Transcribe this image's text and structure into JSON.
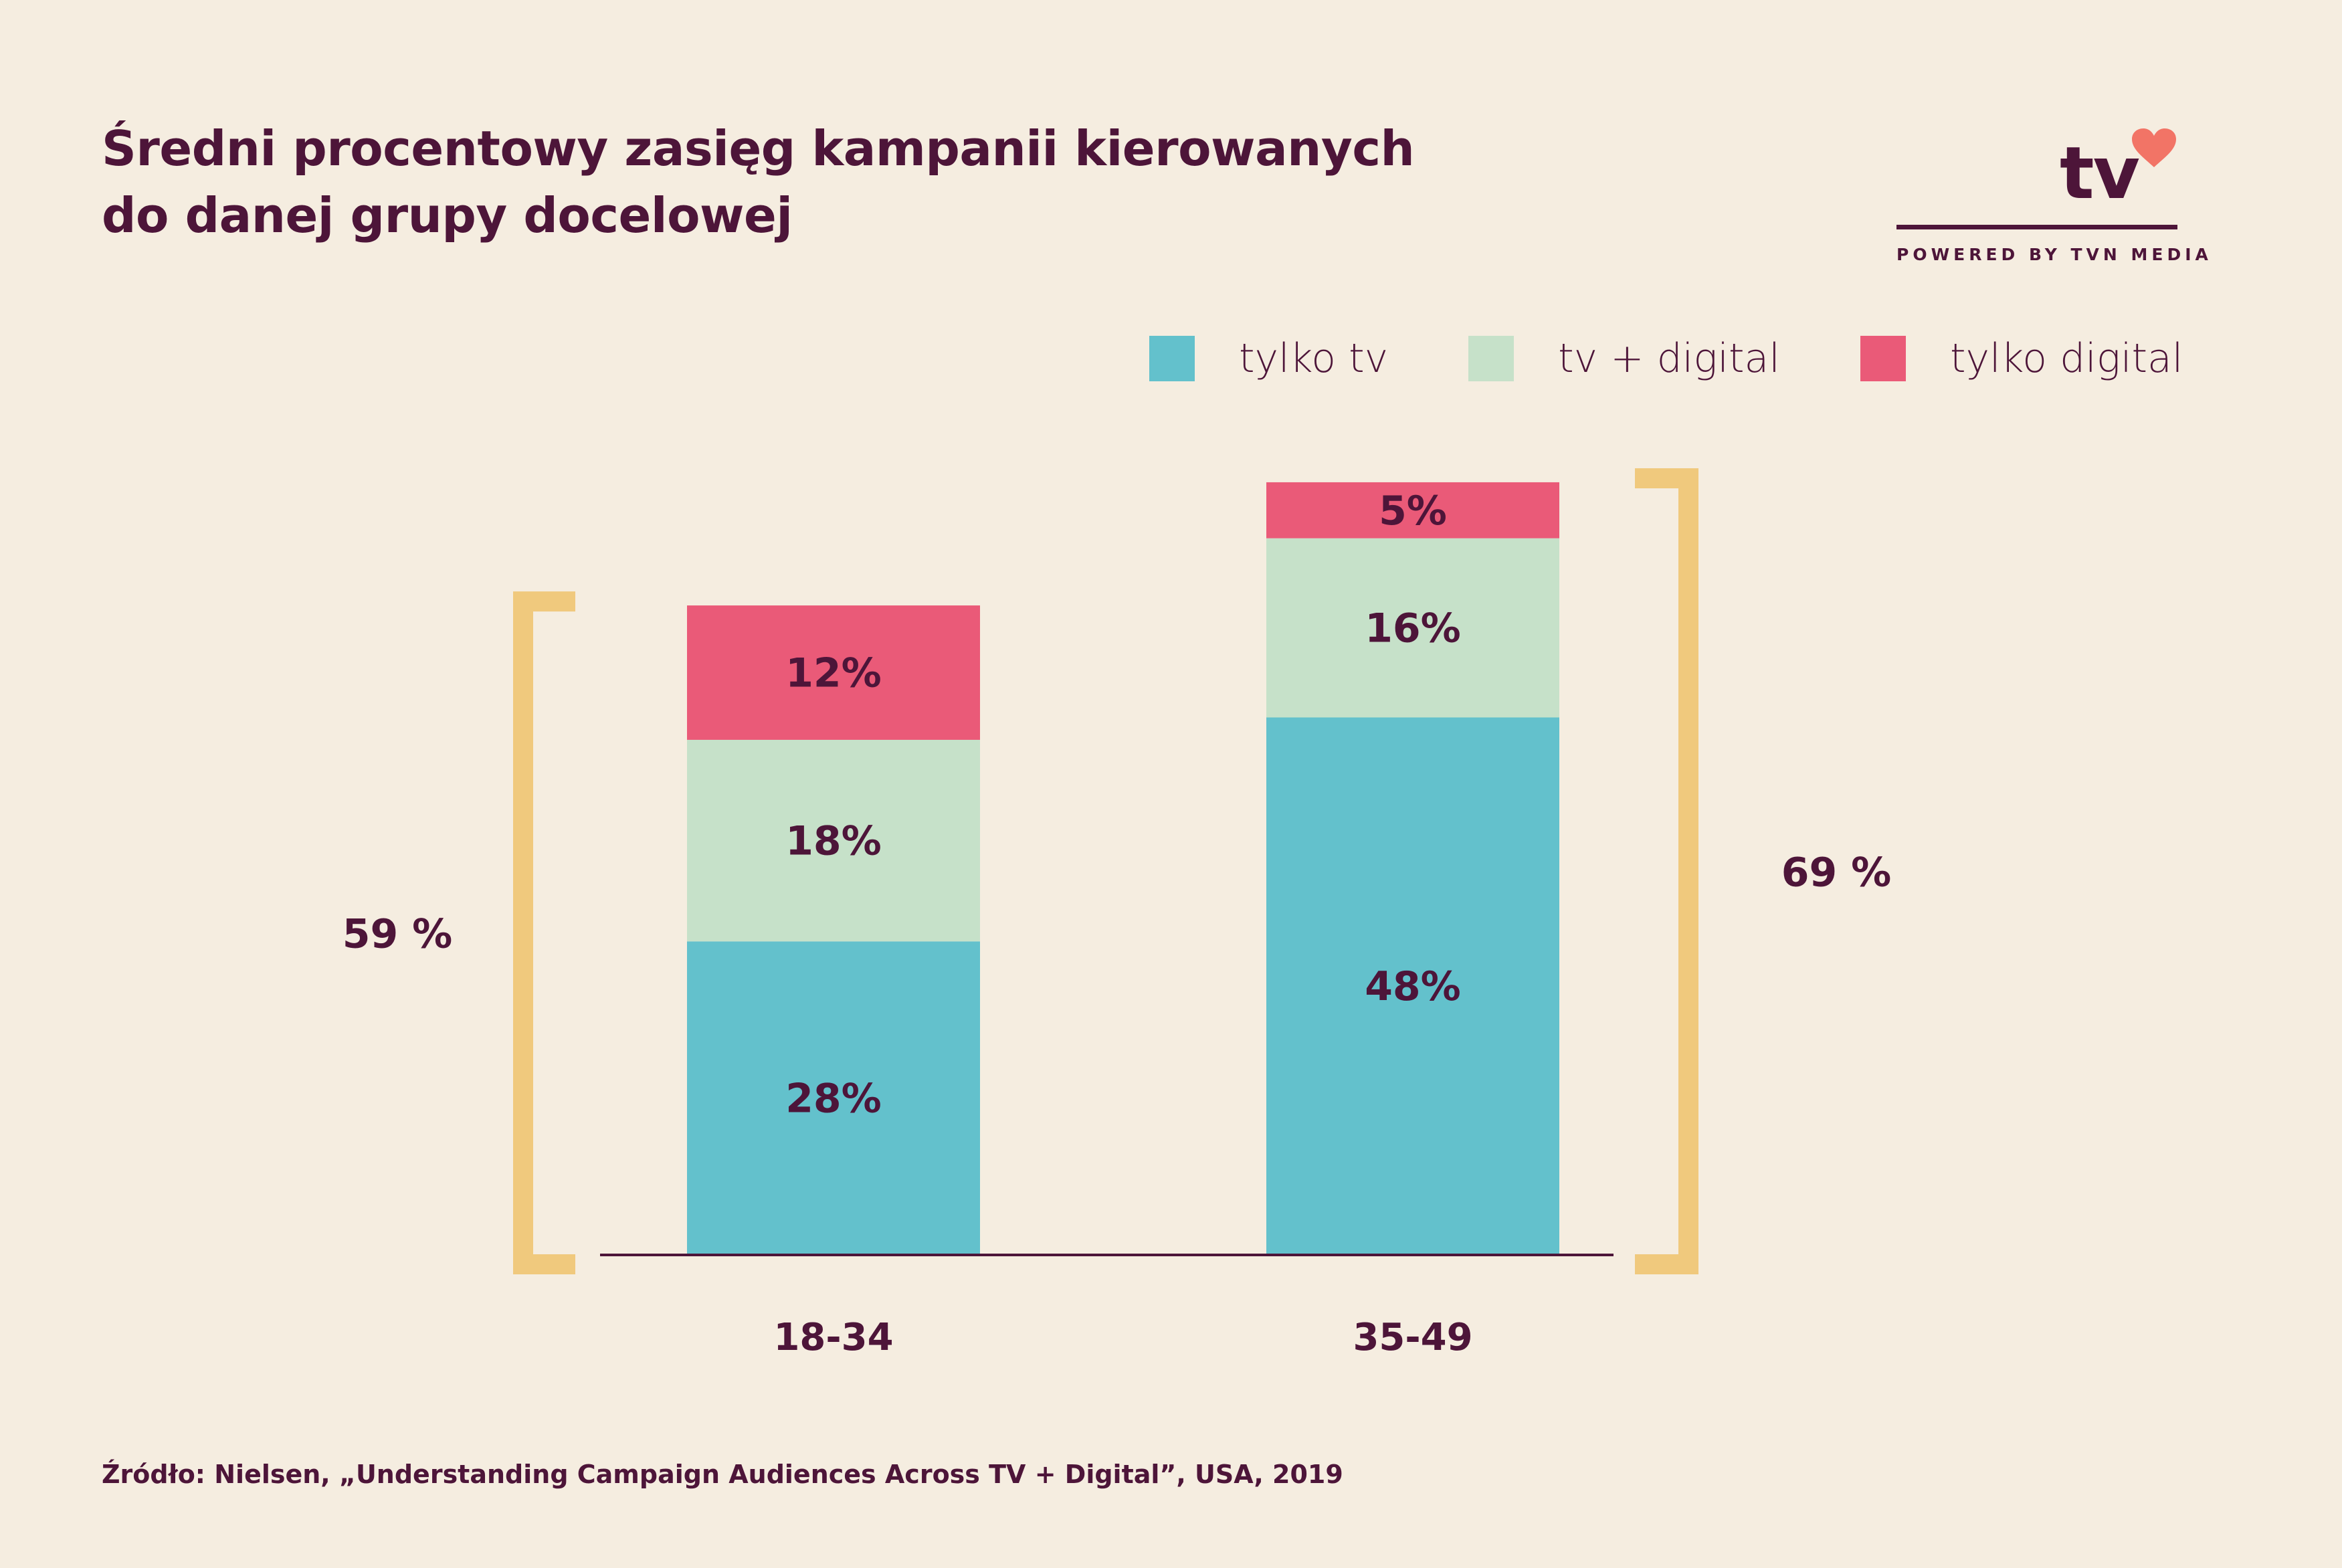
{
  "title_lines": [
    "Średni procentowy zasięg kampanii kierowanych",
    "do danej grupy docelowej"
  ],
  "logo": {
    "text": "tv",
    "tagline": "POWERED BY TVN MEDIA",
    "heart_color": "#f27466"
  },
  "source": "Źródło: Nielsen, „Understanding Campaign Audiences Across TV + Digital”, USA, 2019",
  "colors": {
    "text": "#4d1539",
    "background": "#f5ede0",
    "bracket": "#f0c97d",
    "axis": "#4d1539"
  },
  "chart_data": {
    "type": "bar",
    "stacked": true,
    "categories": [
      "18-34",
      "35-49"
    ],
    "series": [
      {
        "name": "tylko tv",
        "values": [
          28,
          48
        ],
        "labels": [
          "28%",
          "48%"
        ],
        "color": "#63c1cc"
      },
      {
        "name": "tv + digital",
        "values": [
          18,
          16
        ],
        "labels": [
          "18%",
          "16%"
        ],
        "color": "#c6e1c9"
      },
      {
        "name": "tylko digital",
        "values": [
          12,
          5
        ],
        "labels": [
          "12%",
          "5%"
        ],
        "color": "#ea5a78"
      }
    ],
    "totals": [
      {
        "category": "18-34",
        "label": "59 %",
        "side": "left"
      },
      {
        "category": "35-49",
        "label": "69 %",
        "side": "right"
      }
    ],
    "ylim": [
      0,
      69
    ],
    "grid": false,
    "legend_position": "top-right"
  }
}
